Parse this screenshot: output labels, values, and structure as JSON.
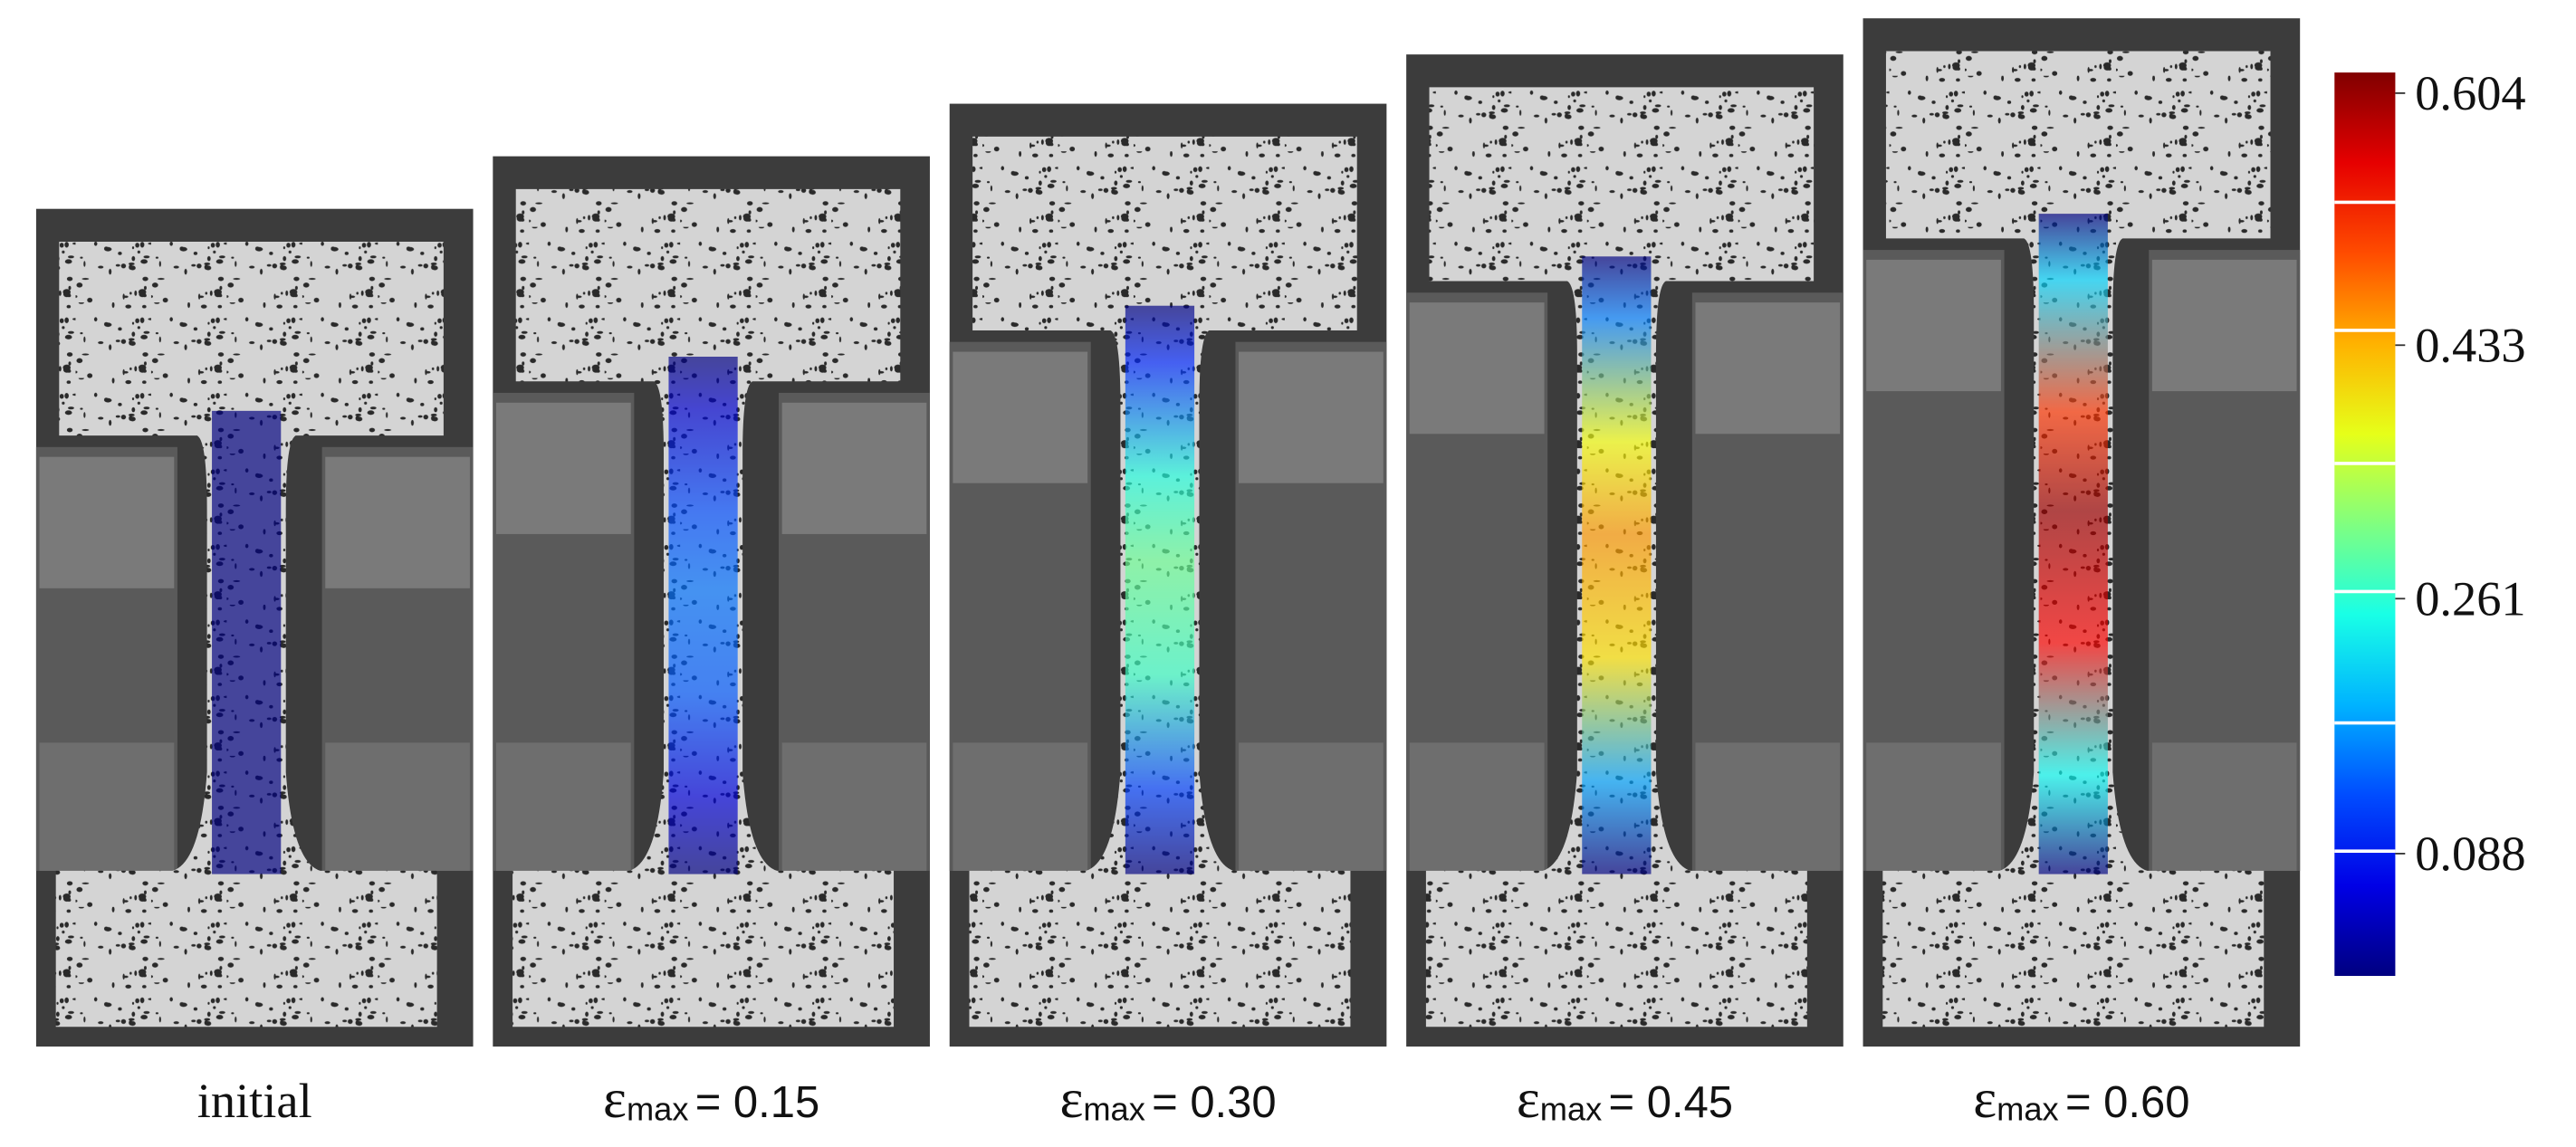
{
  "panels": [
    {
      "label": "initial"
    },
    {
      "symbol": "ε",
      "subscript": "max",
      "label": "= 0.15",
      "strain": 0.15
    },
    {
      "symbol": "ε",
      "subscript": "max",
      "label": "= 0.30",
      "strain": 0.3
    },
    {
      "symbol": "ε",
      "subscript": "max",
      "label": "= 0.45",
      "strain": 0.45
    },
    {
      "symbol": "ε",
      "subscript": "max",
      "label": "= 0.60",
      "strain": 0.6
    }
  ],
  "colorbar": {
    "range": [
      0.005,
      0.618
    ],
    "ticks": [
      0.604,
      0.433,
      0.261,
      0.088
    ]
  }
}
